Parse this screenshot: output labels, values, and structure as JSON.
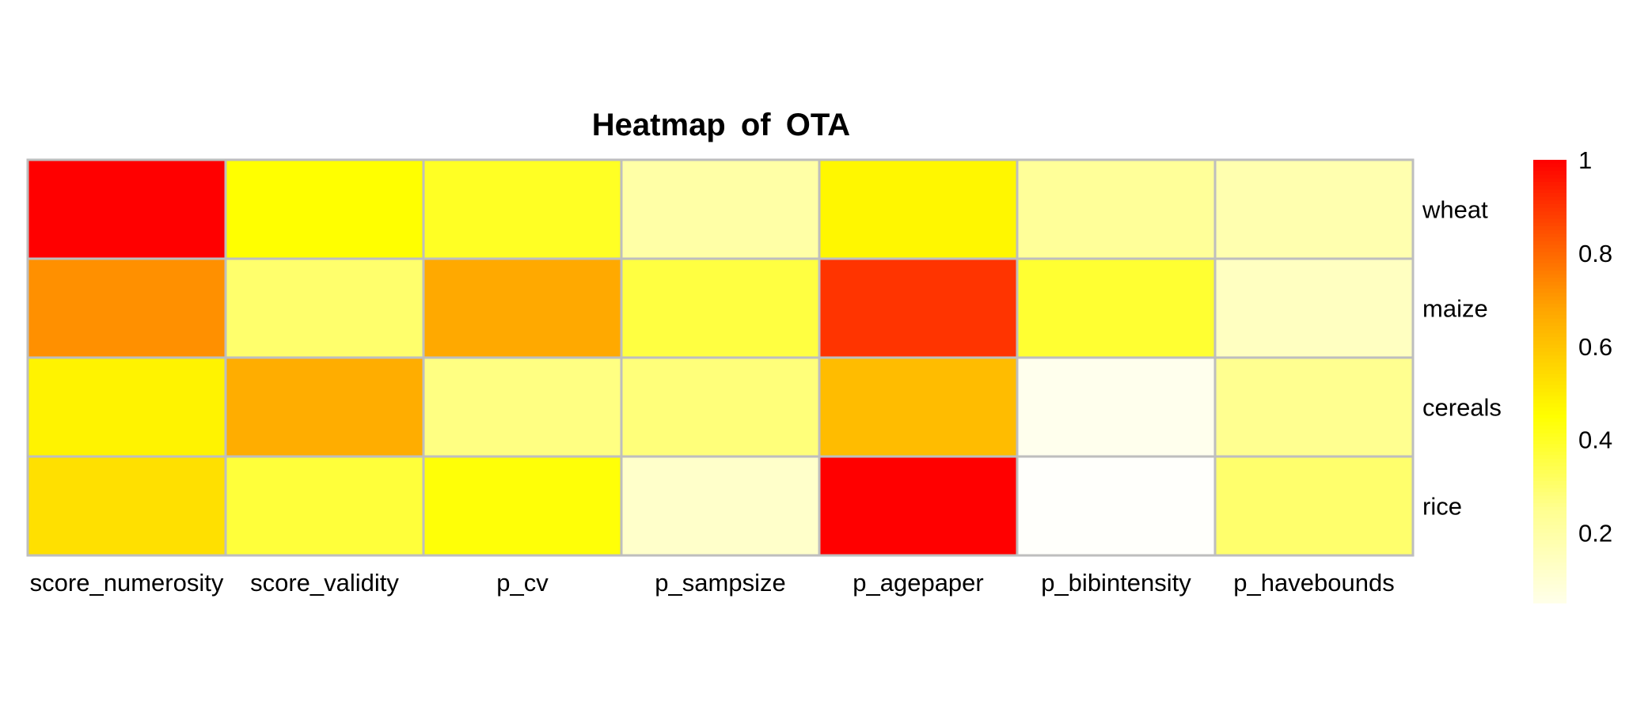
{
  "chart_data": {
    "type": "heatmap",
    "title": "Heatmap of OTA",
    "xlabel": "",
    "ylabel": "",
    "columns": [
      "score_numerosity",
      "score_validity",
      "p_cv",
      "p_sampsize",
      "p_agepaper",
      "p_bibintensity",
      "p_havebounds"
    ],
    "rows": [
      "wheat",
      "maize",
      "cereals",
      "rice"
    ],
    "values": [
      [
        1.0,
        0.45,
        0.4,
        0.2,
        0.47,
        0.23,
        0.18
      ],
      [
        0.72,
        0.3,
        0.67,
        0.36,
        0.9,
        0.38,
        0.14
      ],
      [
        0.48,
        0.66,
        0.27,
        0.28,
        0.62,
        0.04,
        0.25
      ],
      [
        0.53,
        0.37,
        0.44,
        0.12,
        1.0,
        0.01,
        0.3
      ]
    ],
    "value_range": [
      0,
      1
    ],
    "colorbar": {
      "ticks": [
        0.2,
        0.4,
        0.6,
        0.8,
        1
      ],
      "tick_labels": [
        "0.2",
        "0.4",
        "0.6",
        "0.8",
        "1"
      ],
      "range": [
        0.05,
        1.0
      ],
      "placement": "right"
    },
    "palette": {
      "low": "#ffffff",
      "pale": "#ffff90",
      "mid": "#ffff00",
      "orange": "#ffa500",
      "high": "#ff0000"
    },
    "grid_color": "#bebebe"
  }
}
